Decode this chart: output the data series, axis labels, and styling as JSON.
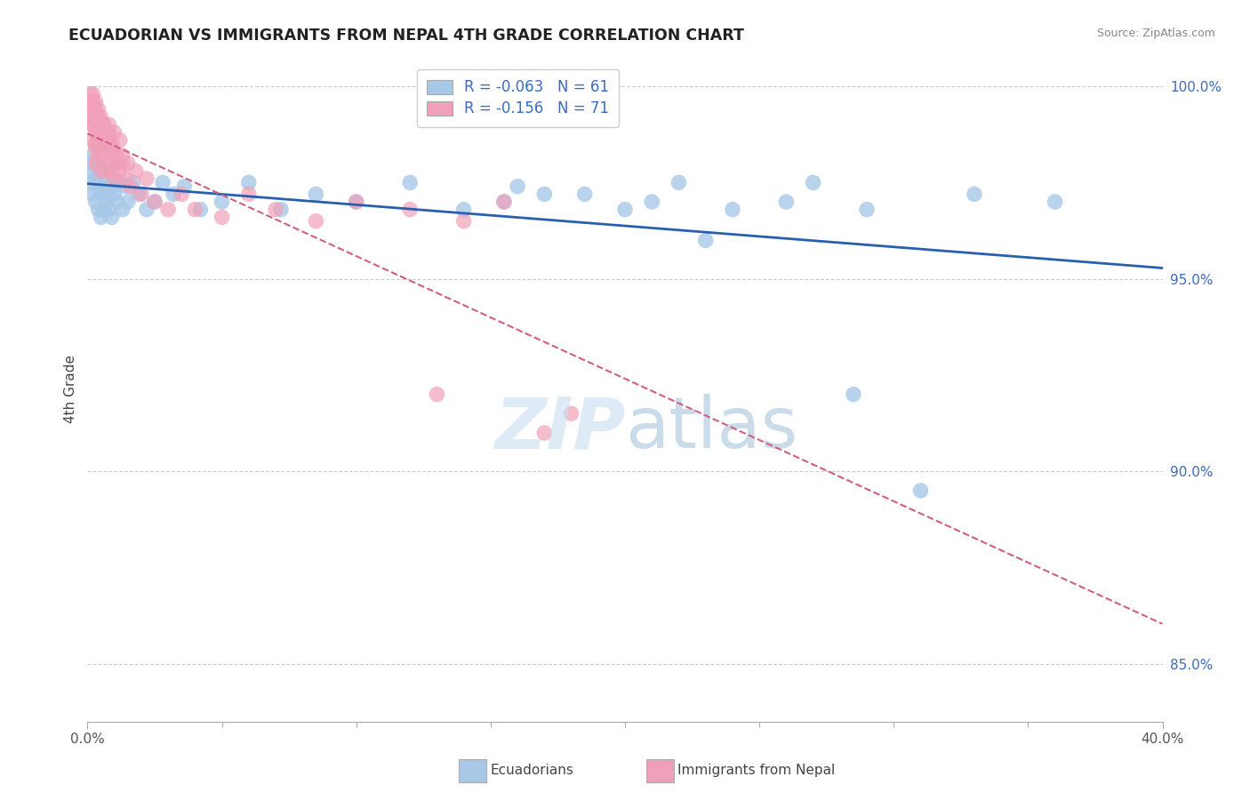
{
  "title": "ECUADORIAN VS IMMIGRANTS FROM NEPAL 4TH GRADE CORRELATION CHART",
  "source_text": "Source: ZipAtlas.com",
  "xlabel_blue": "Ecuadorians",
  "xlabel_pink": "Immigrants from Nepal",
  "ylabel": "4th Grade",
  "xmin": 0.0,
  "xmax": 0.4,
  "ymin": 0.835,
  "ymax": 1.008,
  "yticks": [
    0.85,
    0.9,
    0.95,
    1.0
  ],
  "ytick_labels": [
    "85.0%",
    "90.0%",
    "95.0%",
    "100.0%"
  ],
  "xtick_only_ends": [
    0.0,
    0.4
  ],
  "xtick_end_labels": [
    "0.0%",
    "40.0%"
  ],
  "xtick_minor": [
    0.05,
    0.1,
    0.15,
    0.2,
    0.25,
    0.3,
    0.35
  ],
  "legend_r_blue": "R = -0.063",
  "legend_n_blue": "N = 61",
  "legend_r_pink": "R = -0.156",
  "legend_n_pink": "N = 71",
  "blue_color": "#a8c8e8",
  "pink_color": "#f0a0b8",
  "blue_line_color": "#2860b0",
  "pink_line_color": "#d06080",
  "watermark_zip_color": "#c8dff0",
  "watermark_atlas_color": "#a0c0d8",
  "blue_x": [
    0.001,
    0.001,
    0.002,
    0.002,
    0.002,
    0.003,
    0.003,
    0.003,
    0.004,
    0.004,
    0.004,
    0.005,
    0.005,
    0.005,
    0.006,
    0.006,
    0.006,
    0.007,
    0.007,
    0.008,
    0.008,
    0.009,
    0.009,
    0.01,
    0.01,
    0.011,
    0.012,
    0.013,
    0.014,
    0.015,
    0.017,
    0.019,
    0.022,
    0.025,
    0.028,
    0.032,
    0.036,
    0.042,
    0.05,
    0.06,
    0.072,
    0.085,
    0.1,
    0.12,
    0.14,
    0.16,
    0.185,
    0.21,
    0.24,
    0.27,
    0.155,
    0.17,
    0.2,
    0.22,
    0.26,
    0.29,
    0.33,
    0.36,
    0.285,
    0.23,
    0.31
  ],
  "blue_y": [
    0.98,
    0.975,
    0.978,
    0.972,
    0.982,
    0.976,
    0.97,
    0.985,
    0.974,
    0.968,
    0.98,
    0.972,
    0.966,
    0.978,
    0.974,
    0.968,
    0.984,
    0.97,
    0.976,
    0.972,
    0.968,
    0.974,
    0.966,
    0.972,
    0.98,
    0.97,
    0.975,
    0.968,
    0.974,
    0.97,
    0.975,
    0.972,
    0.968,
    0.97,
    0.975,
    0.972,
    0.974,
    0.968,
    0.97,
    0.975,
    0.968,
    0.972,
    0.97,
    0.975,
    0.968,
    0.974,
    0.972,
    0.97,
    0.968,
    0.975,
    0.97,
    0.972,
    0.968,
    0.975,
    0.97,
    0.968,
    0.972,
    0.97,
    0.92,
    0.96,
    0.895
  ],
  "pink_x": [
    0.001,
    0.001,
    0.001,
    0.002,
    0.002,
    0.002,
    0.002,
    0.003,
    0.003,
    0.003,
    0.003,
    0.003,
    0.004,
    0.004,
    0.004,
    0.004,
    0.005,
    0.005,
    0.005,
    0.005,
    0.006,
    0.006,
    0.006,
    0.007,
    0.007,
    0.007,
    0.008,
    0.008,
    0.009,
    0.009,
    0.01,
    0.01,
    0.011,
    0.012,
    0.013,
    0.014,
    0.015,
    0.016,
    0.018,
    0.02,
    0.022,
    0.025,
    0.03,
    0.035,
    0.04,
    0.05,
    0.06,
    0.07,
    0.085,
    0.1,
    0.12,
    0.14,
    0.155,
    0.008,
    0.009,
    0.01,
    0.011,
    0.012,
    0.013,
    0.006,
    0.007,
    0.008,
    0.004,
    0.005,
    0.003,
    0.002,
    0.002,
    0.003,
    0.13,
    0.17,
    0.18
  ],
  "pink_y": [
    0.998,
    0.995,
    0.992,
    0.998,
    0.994,
    0.99,
    0.986,
    0.996,
    0.992,
    0.988,
    0.984,
    0.98,
    0.994,
    0.99,
    0.986,
    0.982,
    0.992,
    0.988,
    0.984,
    0.978,
    0.99,
    0.986,
    0.982,
    0.988,
    0.984,
    0.978,
    0.986,
    0.98,
    0.984,
    0.978,
    0.982,
    0.976,
    0.98,
    0.978,
    0.982,
    0.976,
    0.98,
    0.974,
    0.978,
    0.972,
    0.976,
    0.97,
    0.968,
    0.972,
    0.968,
    0.966,
    0.972,
    0.968,
    0.965,
    0.97,
    0.968,
    0.965,
    0.97,
    0.99,
    0.985,
    0.988,
    0.982,
    0.986,
    0.98,
    0.99,
    0.984,
    0.988,
    0.992,
    0.986,
    0.994,
    0.996,
    0.99,
    0.985,
    0.92,
    0.91,
    0.915
  ]
}
